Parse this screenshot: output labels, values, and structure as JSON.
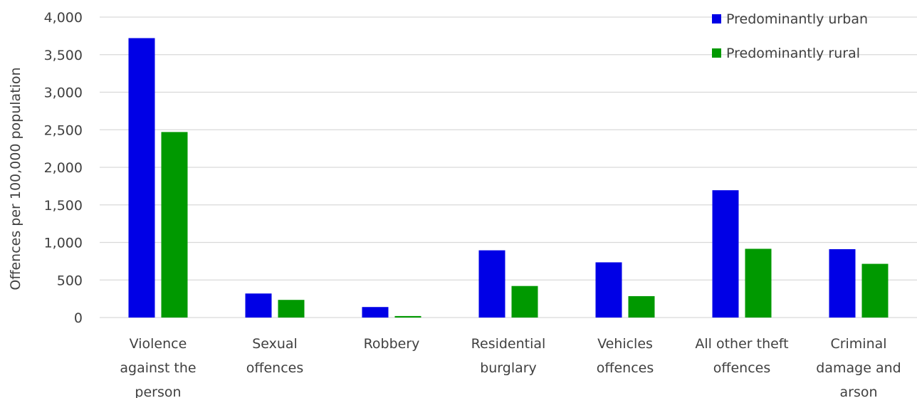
{
  "chart_data": {
    "type": "bar",
    "title": "",
    "xlabel": "",
    "ylabel": "Offences per 100,000 population",
    "ylim": [
      0,
      4000
    ],
    "yticks": [
      0,
      500,
      1000,
      1500,
      2000,
      2500,
      3000,
      3500,
      4000
    ],
    "ytick_labels": [
      "0",
      "500",
      "1,000",
      "1,500",
      "2,000",
      "2,500",
      "3,000",
      "3,500",
      "4,000"
    ],
    "grid": true,
    "legend_position": "top-right",
    "categories": [
      [
        "Violence",
        "against the",
        "person"
      ],
      [
        "Sexual",
        "offences"
      ],
      [
        "Robbery"
      ],
      [
        "Residential",
        "burglary"
      ],
      [
        "Vehicles",
        "offences"
      ],
      [
        "All other theft",
        "offences"
      ],
      [
        "Criminal",
        "damage and",
        "arson"
      ]
    ],
    "series": [
      {
        "name": "Predominantly urban",
        "color": "#0000e6",
        "values": [
          3720,
          320,
          140,
          895,
          735,
          1695,
          910
        ]
      },
      {
        "name": "Predominantly rural",
        "color": "#009900",
        "values": [
          2470,
          235,
          20,
          420,
          285,
          915,
          715
        ]
      }
    ]
  }
}
